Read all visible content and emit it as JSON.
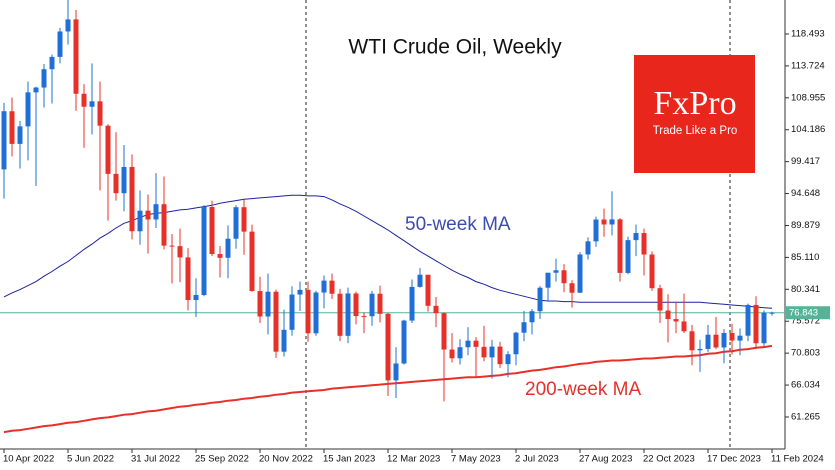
{
  "chart_data": {
    "type": "candlestick",
    "title": "WTI Crude Oil, Weekly",
    "logo": {
      "name": "FxPro",
      "tagline": "Trade Like a Pro",
      "color": "#e8261c"
    },
    "up_color": "#1f6fd6",
    "down_color": "#e8302a",
    "price_line_color": "#56b39a",
    "categories": [
      "10 Apr 2022",
      null,
      null,
      null,
      null,
      null,
      null,
      null,
      "5 Jun 2022",
      null,
      null,
      null,
      null,
      null,
      null,
      null,
      "31 Jul 2022",
      null,
      null,
      null,
      null,
      null,
      null,
      null,
      "25 Sep 2022",
      null,
      null,
      null,
      null,
      null,
      null,
      null,
      "20 Nov 2022",
      null,
      null,
      null,
      null,
      null,
      null,
      null,
      "15 Jan 2023",
      null,
      null,
      null,
      null,
      null,
      null,
      null,
      "12 Mar 2023",
      null,
      null,
      null,
      null,
      null,
      null,
      null,
      "7 May 2023",
      null,
      null,
      null,
      null,
      null,
      null,
      null,
      "2 Jul 2023",
      null,
      null,
      null,
      null,
      null,
      null,
      null,
      "27 Aug 2023",
      null,
      null,
      null,
      null,
      null,
      null,
      null,
      "22 Oct 2023",
      null,
      null,
      null,
      null,
      null,
      null,
      null,
      "17 Dec 2023",
      null,
      null,
      null,
      null,
      null,
      null,
      null,
      "11 Feb 2024"
    ],
    "open": [
      98.26,
      106.95,
      102.07,
      104.69,
      109.77,
      110.49,
      113.23,
      115.07,
      118.87,
      120.67,
      109.56,
      107.62,
      108.43,
      104.79,
      97.59,
      94.7,
      98.62,
      89.01,
      92.09,
      90.77,
      93.06,
      86.87,
      86.79,
      85.11,
      78.74,
      79.49,
      92.64,
      85.61,
      85.05,
      87.9,
      92.61,
      88.96,
      80.08,
      76.28,
      79.98,
      71.02,
      74.29,
      79.56,
      80.26,
      73.77,
      79.86,
      81.64,
      79.68,
      73.39,
      79.72,
      76.34,
      76.32,
      79.68,
      76.68,
      66.74,
      69.26,
      75.67,
      80.7,
      82.52,
      77.87,
      76.78,
      71.34,
      70.04,
      71.69,
      72.67,
      71.74,
      70.17,
      71.78,
      69.16,
      70.64,
      73.86,
      75.42,
      77.07,
      80.58,
      82.82,
      83.19,
      81.25,
      79.83,
      85.55,
      87.51,
      90.77,
      90.03,
      90.79,
      82.79,
      87.69,
      88.75,
      85.54,
      80.51,
      77.17,
      75.89,
      75.54,
      74.07,
      71.23,
      71.43,
      73.56,
      71.65,
      73.81,
      72.68,
      73.41,
      78.01,
      72.28,
      76.84
    ],
    "high": [
      108.2,
      109.0,
      105.5,
      111.4,
      110.6,
      114.0,
      115.4,
      119.4,
      123.7,
      122.1,
      111.0,
      114.1,
      111.4,
      105.0,
      103.8,
      101.9,
      100.5,
      95.1,
      94.5,
      97.7,
      97.2,
      88.6,
      89.4,
      86.5,
      82.0,
      92.9,
      93.6,
      86.8,
      89.9,
      92.9,
      93.7,
      90.0,
      82.2,
      82.7,
      80.3,
      77.3,
      80.8,
      81.5,
      81.5,
      80.1,
      82.4,
      82.7,
      80.4,
      80.6,
      80.0,
      76.9,
      80.1,
      80.9,
      76.8,
      71.7,
      75.8,
      81.8,
      83.5,
      82.5,
      79.2,
      76.9,
      73.8,
      72.9,
      74.7,
      73.2,
      74.9,
      72.8,
      72.5,
      71.1,
      74.0,
      77.1,
      77.4,
      80.8,
      82.8,
      84.9,
      84.1,
      81.7,
      85.9,
      88.1,
      91.2,
      92.4,
      95.0,
      91.0,
      88.2,
      90.0,
      89.4,
      86.0,
      81.0,
      79.6,
      78.5,
      79.7,
      75.0,
      72.8,
      75.0,
      76.2,
      74.4,
      75.2,
      74.5,
      78.2,
      79.3,
      77.2,
      77.0
    ],
    "low": [
      93.9,
      100.2,
      98.4,
      99.6,
      95.8,
      107.5,
      108.1,
      114.1,
      116.9,
      107.0,
      101.5,
      103.5,
      95.1,
      90.6,
      93.6,
      92.0,
      87.8,
      87.0,
      85.7,
      89.5,
      86.3,
      81.2,
      81.4,
      77.2,
      76.2,
      79.3,
      85.3,
      82.1,
      82.0,
      86.4,
      85.5,
      80.0,
      75.3,
      73.6,
      70.1,
      70.3,
      73.4,
      77.1,
      72.5,
      73.4,
      77.5,
      78.9,
      72.6,
      72.3,
      75.1,
      73.8,
      74.9,
      75.4,
      64.4,
      64.1,
      69.1,
      75.3,
      80.6,
      77.0,
      74.7,
      63.6,
      69.4,
      69.1,
      70.5,
      67.1,
      69.6,
      67.0,
      68.6,
      67.2,
      69.0,
      72.6,
      73.6,
      75.9,
      78.6,
      81.5,
      79.9,
      77.6,
      79.8,
      84.8,
      86.7,
      88.2,
      88.4,
      81.5,
      82.6,
      85.3,
      82.4,
      80.1,
      75.3,
      72.4,
      73.8,
      73.8,
      69.0,
      68.0,
      71.0,
      71.4,
      69.3,
      70.6,
      70.5,
      72.6,
      71.4,
      71.8,
      76.4
    ],
    "close": [
      106.95,
      102.07,
      104.69,
      109.77,
      110.49,
      113.23,
      115.07,
      118.87,
      120.67,
      109.56,
      107.62,
      108.43,
      104.79,
      97.59,
      94.7,
      98.62,
      89.01,
      92.09,
      90.77,
      93.06,
      86.87,
      86.79,
      85.11,
      78.74,
      79.49,
      92.64,
      85.61,
      85.05,
      87.9,
      92.61,
      88.96,
      80.08,
      76.28,
      79.98,
      71.02,
      74.29,
      79.56,
      80.26,
      73.77,
      79.86,
      81.64,
      79.68,
      73.39,
      79.72,
      76.34,
      76.32,
      79.68,
      76.68,
      66.74,
      69.26,
      75.67,
      80.7,
      82.52,
      77.87,
      76.78,
      71.34,
      70.04,
      71.69,
      72.67,
      71.74,
      70.17,
      71.78,
      69.16,
      70.64,
      73.86,
      75.42,
      77.07,
      80.58,
      82.82,
      83.19,
      81.25,
      79.83,
      85.55,
      87.51,
      90.77,
      90.03,
      90.79,
      82.79,
      87.69,
      88.75,
      85.54,
      80.51,
      77.17,
      75.89,
      75.54,
      74.07,
      71.23,
      71.43,
      73.56,
      71.65,
      73.81,
      72.68,
      73.41,
      78.01,
      72.28,
      76.84,
      76.843
    ],
    "lines": [
      {
        "name": "50-week MA",
        "color": "#1c22a0",
        "label_color": "#3b4bb0",
        "values": [
          79.2,
          79.8,
          80.3,
          80.9,
          81.5,
          82.3,
          83.0,
          83.8,
          84.5,
          85.4,
          86.3,
          87.1,
          88.0,
          88.7,
          89.5,
          90.2,
          90.6,
          91.1,
          91.5,
          91.7,
          91.8,
          92.0,
          92.2,
          92.3,
          92.5,
          92.7,
          92.9,
          93.2,
          93.4,
          93.6,
          93.8,
          93.9,
          94.0,
          94.1,
          94.2,
          94.3,
          94.4,
          94.4,
          94.3,
          94.3,
          94.2,
          93.7,
          93.1,
          92.6,
          92.0,
          91.3,
          90.6,
          89.9,
          89.2,
          88.4,
          87.6,
          86.8,
          86.0,
          85.3,
          84.6,
          83.9,
          83.2,
          82.6,
          82.1,
          81.5,
          81.1,
          80.6,
          80.2,
          79.9,
          79.6,
          79.3,
          79.0,
          78.7,
          78.6,
          78.6,
          78.5,
          78.5,
          78.4,
          78.4,
          78.4,
          78.4,
          78.4,
          78.4,
          78.4,
          78.4,
          78.4,
          78.4,
          78.4,
          78.4,
          78.4,
          78.4,
          78.4,
          78.4,
          78.3,
          78.2,
          78.1,
          78.0,
          77.9,
          77.8,
          77.7,
          77.6,
          77.5
        ]
      },
      {
        "name": "200-week MA",
        "color": "#e8302a",
        "label_color": "#e8302a",
        "values": [
          59.0,
          59.2,
          59.3,
          59.5,
          59.7,
          59.9,
          60.0,
          60.2,
          60.4,
          60.5,
          60.7,
          60.9,
          61.1,
          61.2,
          61.4,
          61.6,
          61.7,
          61.9,
          62.1,
          62.2,
          62.4,
          62.6,
          62.8,
          62.9,
          63.1,
          63.2,
          63.4,
          63.5,
          63.7,
          63.8,
          64.0,
          64.1,
          64.3,
          64.4,
          64.6,
          64.7,
          64.9,
          65.0,
          65.1,
          65.2,
          65.3,
          65.5,
          65.6,
          65.7,
          65.8,
          65.9,
          66.0,
          66.1,
          66.2,
          66.3,
          66.4,
          66.5,
          66.6,
          66.7,
          66.8,
          66.9,
          67.0,
          67.1,
          67.2,
          67.2,
          67.3,
          67.4,
          67.5,
          67.7,
          67.8,
          68.0,
          68.2,
          68.3,
          68.5,
          68.7,
          68.8,
          69.0,
          69.2,
          69.3,
          69.5,
          69.6,
          69.7,
          69.7,
          69.8,
          69.9,
          70.0,
          70.0,
          70.1,
          70.2,
          70.3,
          70.3,
          70.4,
          70.5,
          70.7,
          70.8,
          71.0,
          71.1,
          71.3,
          71.4,
          71.6,
          71.7,
          71.9
        ]
      }
    ],
    "ylim": [
      56.48,
      123.57
    ],
    "yticks": [
      118.493,
      113.724,
      108.955,
      104.186,
      99.417,
      94.648,
      89.879,
      {
        "value": 85.11,
        "label": "85.110"
      },
      80.341,
      75.572,
      70.803,
      66.034,
      61.265
    ]
  }
}
